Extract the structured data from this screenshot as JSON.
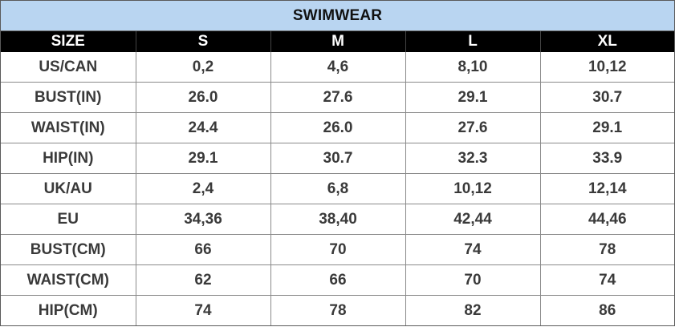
{
  "title": "SWIMWEAR",
  "columns": [
    "SIZE",
    "S",
    "M",
    "L",
    "XL"
  ],
  "rows": [
    {
      "label": "US/CAN",
      "values": [
        "0,2",
        "4,6",
        "8,10",
        "10,12"
      ]
    },
    {
      "label": "BUST(IN)",
      "values": [
        "26.0",
        "27.6",
        "29.1",
        "30.7"
      ]
    },
    {
      "label": "WAIST(IN)",
      "values": [
        "24.4",
        "26.0",
        "27.6",
        "29.1"
      ]
    },
    {
      "label": "HIP(IN)",
      "values": [
        "29.1",
        "30.7",
        "32.3",
        "33.9"
      ]
    },
    {
      "label": "UK/AU",
      "values": [
        "2,4",
        "6,8",
        "10,12",
        "12,14"
      ]
    },
    {
      "label": "EU",
      "values": [
        "34,36",
        "38,40",
        "42,44",
        "44,46"
      ]
    },
    {
      "label": "BUST(CM)",
      "values": [
        "66",
        "70",
        "74",
        "78"
      ]
    },
    {
      "label": "WAIST(CM)",
      "values": [
        "62",
        "66",
        "70",
        "74"
      ]
    },
    {
      "label": "HIP(CM)",
      "values": [
        "74",
        "78",
        "82",
        "86"
      ]
    }
  ],
  "colors": {
    "title_background": "#b9d5f1",
    "header_background": "#000000",
    "header_text": "#ffffff",
    "cell_text": "#3a3a3a"
  }
}
